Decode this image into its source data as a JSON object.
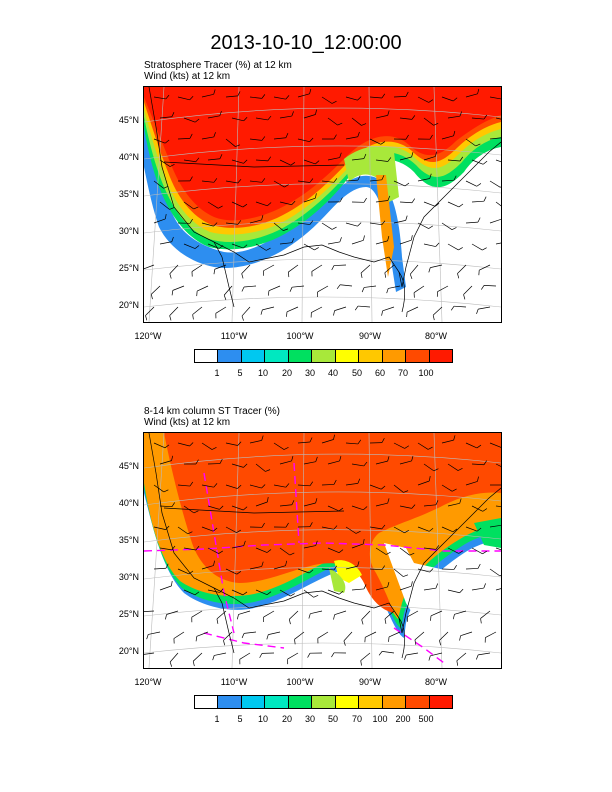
{
  "title": "2013-10-10_12:00:00",
  "colors": {
    "red": "#ff1a00",
    "orange_red": "#ff4a00",
    "orange": "#ff9a00",
    "yellow_orange": "#ffc800",
    "yellow": "#ffff00",
    "yellow_green": "#a8e83a",
    "green": "#00e060",
    "teal": "#00e8c0",
    "cyan": "#00c8f0",
    "blue": "#2d8ef0",
    "white": "#ffffff",
    "magenta": "#ff00ff"
  },
  "panels": [
    {
      "label_line1": "Stratosphere Tracer   (%)     at   12 km",
      "label_line2": "Wind    (kts)     at   12 km",
      "lat_ticks": [
        "45°N",
        "40°N",
        "35°N",
        "30°N",
        "25°N",
        "20°N"
      ],
      "lon_ticks": [
        "120°W",
        "110°W",
        "100°W",
        "90°W",
        "80°W"
      ],
      "colorbar_labels": [
        "1",
        "5",
        "10",
        "20",
        "30",
        "40",
        "50",
        "60",
        "70",
        "100"
      ]
    },
    {
      "label_line1": "8-14 km column ST Tracer    (%)",
      "label_line2": "Wind    (kts)     at   12 km",
      "lat_ticks": [
        "45°N",
        "40°N",
        "35°N",
        "30°N",
        "25°N",
        "20°N"
      ],
      "lon_ticks": [
        "120°W",
        "110°W",
        "100°W",
        "90°W",
        "80°W"
      ],
      "colorbar_labels": [
        "1",
        "5",
        "10",
        "20",
        "30",
        "50",
        "70",
        "100",
        "200",
        "500"
      ]
    }
  ]
}
